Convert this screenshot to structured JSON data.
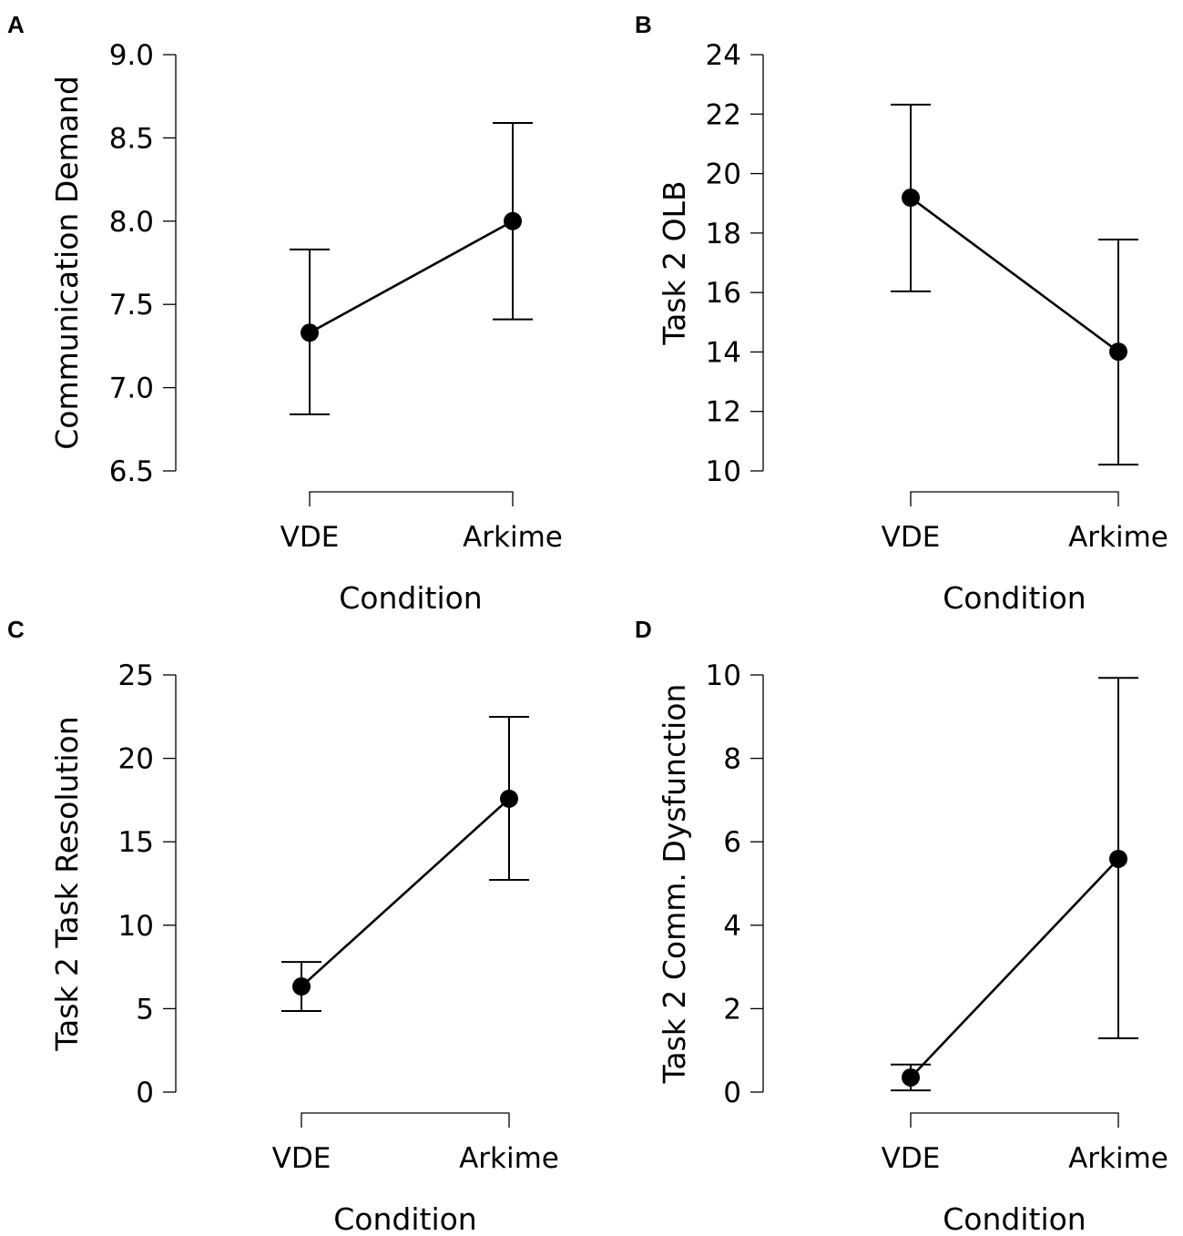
{
  "chart_data": [
    {
      "panel": "A",
      "type": "line",
      "categories": [
        "VDE",
        "Arkime"
      ],
      "values": [
        7.33,
        8.0
      ],
      "error_low": [
        6.84,
        7.41
      ],
      "error_high": [
        7.83,
        8.59
      ],
      "xlabel": "Condition",
      "ylabel": "Communication Demand",
      "ylim": [
        6.5,
        9.0
      ],
      "yticks": [
        "6.5",
        "7.0",
        "7.5",
        "8.0",
        "8.5",
        "9.0"
      ]
    },
    {
      "panel": "B",
      "type": "line",
      "categories": [
        "VDE",
        "Arkime"
      ],
      "values": [
        19.19,
        14.01
      ],
      "error_low": [
        16.04,
        10.21
      ],
      "error_high": [
        22.32,
        17.78
      ],
      "xlabel": "Condition",
      "ylabel": "Task 2 OLB",
      "ylim": [
        10,
        24
      ],
      "yticks": [
        "10",
        "12",
        "14",
        "16",
        "18",
        "20",
        "22",
        "24"
      ]
    },
    {
      "panel": "C",
      "type": "line",
      "categories": [
        "VDE",
        "Arkime"
      ],
      "values": [
        6.33,
        17.58
      ],
      "error_low": [
        4.86,
        12.72
      ],
      "error_high": [
        7.8,
        22.49
      ],
      "xlabel": "Condition",
      "ylabel": "Task 2 Task Resolution",
      "ylim": [
        0,
        25
      ],
      "yticks": [
        "0",
        "5",
        "10",
        "15",
        "20",
        "25"
      ]
    },
    {
      "panel": "D",
      "type": "line",
      "categories": [
        "VDE",
        "Arkime"
      ],
      "values": [
        0.35,
        5.59
      ],
      "error_low": [
        0.04,
        1.29
      ],
      "error_high": [
        0.66,
        9.93
      ],
      "xlabel": "Condition",
      "ylabel": "Task 2 Comm. Dysfunction",
      "ylim": [
        0,
        10
      ],
      "yticks": [
        "0",
        "2",
        "4",
        "6",
        "8",
        "10"
      ]
    }
  ]
}
